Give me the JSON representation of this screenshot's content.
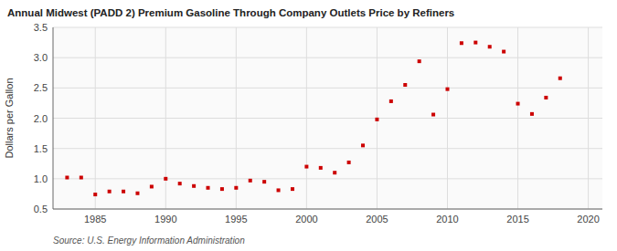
{
  "chart_data": {
    "type": "scatter",
    "title": "Annual Midwest (PADD 2) Premium Gasoline Through Company Outlets Price by Refiners",
    "y_label": "Dollars per Gallon",
    "source": "Source: U.S. Energy Information Administration",
    "x": [
      1983,
      1984,
      1985,
      1986,
      1987,
      1988,
      1989,
      1990,
      1991,
      1992,
      1993,
      1994,
      1995,
      1996,
      1997,
      1998,
      1999,
      2000,
      2001,
      2002,
      2003,
      2004,
      2005,
      2006,
      2007,
      2008,
      2009,
      2010,
      2011,
      2012,
      2013,
      2014,
      2015,
      2016,
      2017,
      2018
    ],
    "values": [
      1.02,
      1.02,
      0.74,
      0.79,
      0.79,
      0.76,
      0.87,
      1.0,
      0.92,
      0.88,
      0.85,
      0.83,
      0.85,
      0.97,
      0.95,
      0.81,
      0.83,
      1.2,
      1.18,
      1.1,
      1.27,
      1.55,
      1.98,
      2.28,
      2.55,
      2.94,
      2.06,
      2.48,
      3.24,
      3.25,
      3.18,
      3.1,
      2.24,
      2.07,
      2.34,
      2.66
    ],
    "color": "#cc0000",
    "marker": "square",
    "xlim": [
      1982,
      2021
    ],
    "ylim": [
      0.5,
      3.5
    ],
    "xticks": [
      1985,
      1990,
      1995,
      2000,
      2005,
      2010,
      2015,
      2020
    ],
    "yticks": [
      0.5,
      {
        "value": 1.0,
        "label": "1.0"
      },
      1.5,
      {
        "value": 2.0,
        "label": "2.0"
      },
      2.5,
      {
        "value": 3.0,
        "label": "3.0"
      },
      3.5
    ],
    "grid": true
  }
}
